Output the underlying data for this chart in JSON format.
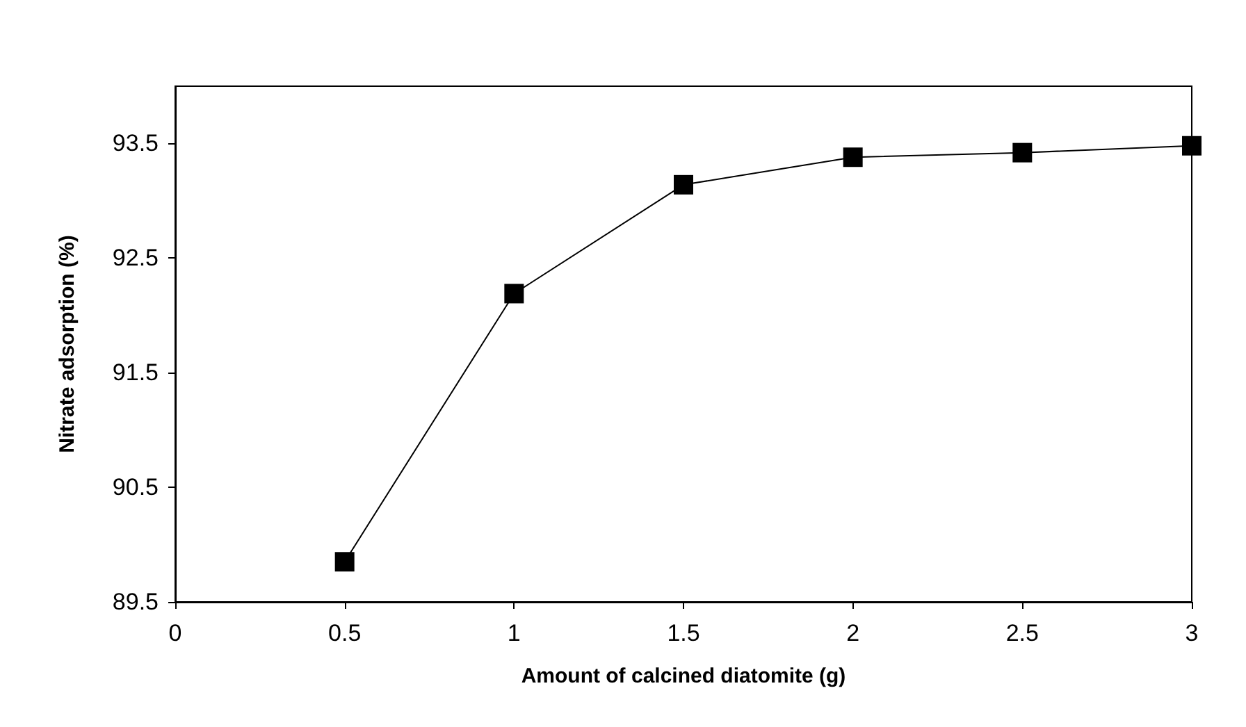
{
  "chart_data": {
    "type": "line",
    "xlabel": "Amount of calcined diatomite (g)",
    "ylabel": "Nitrate adsorption (%)",
    "x": [
      0.5,
      1,
      1.5,
      2,
      2.5,
      3
    ],
    "series": [
      {
        "color": "#000000",
        "values": [
          89.85,
          92.19,
          93.14,
          93.38,
          93.42,
          93.48
        ]
      }
    ],
    "xlim": [
      0,
      3
    ],
    "xticks": [
      0,
      0.5,
      1,
      1.5,
      2,
      2.5,
      3
    ],
    "ylim": [
      89.5,
      94
    ],
    "yticks": [
      89.5,
      90.5,
      91.5,
      92.5,
      93.5
    ],
    "grid": false,
    "marker": "square",
    "line_style": "solid"
  }
}
